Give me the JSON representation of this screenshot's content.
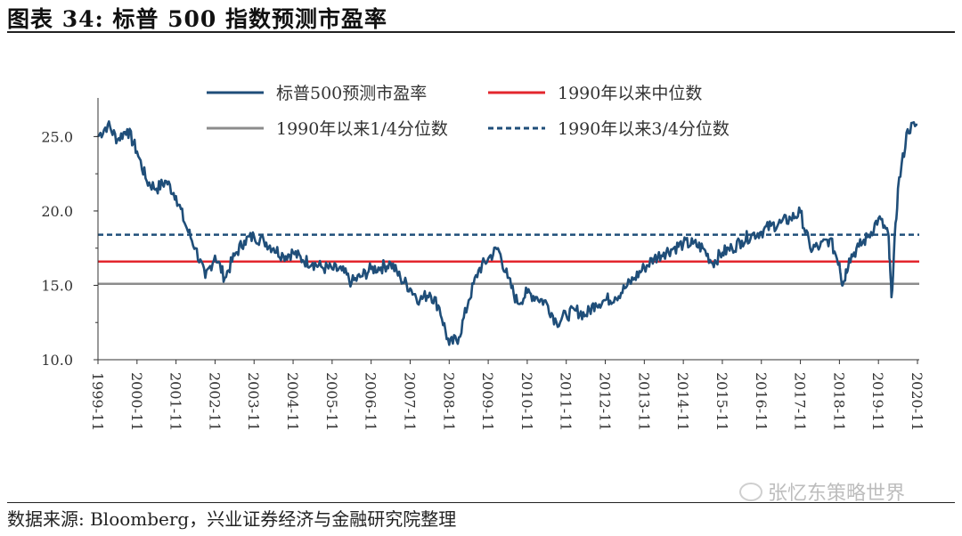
{
  "header": {
    "title": "图表 34:  标普 500 指数预测市盈率"
  },
  "footer": {
    "source": "数据来源: Bloomberg，兴业证券经济与金融研究院整理",
    "watermark": "张忆东策略世界"
  },
  "chart_data": {
    "type": "line",
    "title": "图表 34:  标普 500 指数预测市盈率",
    "xlabel": "",
    "ylabel": "",
    "ylim": [
      10,
      27
    ],
    "yticks": [
      "10.0",
      "15.0",
      "20.0",
      "25.0"
    ],
    "xticks": [
      "1999-11",
      "2000-11",
      "2001-11",
      "2002-11",
      "2003-11",
      "2004-11",
      "2005-11",
      "2006-11",
      "2007-11",
      "2008-11",
      "2009-11",
      "2010-11",
      "2011-11",
      "2012-11",
      "2013-11",
      "2014-11",
      "2015-11",
      "2016-11",
      "2017-11",
      "2018-11",
      "2019-11",
      "2020-11"
    ],
    "legend_position": "top-center",
    "series": [
      {
        "name": "标普500预测市盈率",
        "color": "#1f4e79",
        "style": "solid",
        "x": [
          "1999-11",
          "2000-02",
          "2000-05",
          "2000-08",
          "2000-11",
          "2001-02",
          "2001-05",
          "2001-08",
          "2001-11",
          "2002-02",
          "2002-05",
          "2002-08",
          "2002-11",
          "2003-02",
          "2003-05",
          "2003-08",
          "2003-11",
          "2004-02",
          "2004-05",
          "2004-08",
          "2004-11",
          "2005-02",
          "2005-05",
          "2005-08",
          "2005-11",
          "2006-02",
          "2006-05",
          "2006-08",
          "2006-11",
          "2007-02",
          "2007-05",
          "2007-08",
          "2007-11",
          "2008-02",
          "2008-05",
          "2008-08",
          "2008-11",
          "2009-02",
          "2009-05",
          "2009-08",
          "2009-11",
          "2010-02",
          "2010-05",
          "2010-08",
          "2010-11",
          "2011-02",
          "2011-05",
          "2011-08",
          "2011-11",
          "2012-02",
          "2012-05",
          "2012-08",
          "2012-11",
          "2013-02",
          "2013-05",
          "2013-08",
          "2013-11",
          "2014-02",
          "2014-05",
          "2014-08",
          "2014-11",
          "2015-02",
          "2015-05",
          "2015-08",
          "2015-11",
          "2016-02",
          "2016-05",
          "2016-08",
          "2016-11",
          "2017-02",
          "2017-05",
          "2017-08",
          "2017-11",
          "2018-02",
          "2018-05",
          "2018-08",
          "2018-11",
          "2018-12",
          "2019-02",
          "2019-05",
          "2019-08",
          "2019-11",
          "2020-02",
          "2020-03",
          "2020-05",
          "2020-08",
          "2020-11"
        ],
        "values": [
          25.0,
          25.8,
          24.8,
          25.5,
          24.0,
          22.0,
          21.5,
          22.0,
          21.0,
          19.0,
          17.5,
          15.5,
          17.0,
          15.5,
          17.0,
          18.0,
          18.3,
          18.0,
          17.5,
          17.0,
          17.2,
          16.7,
          16.5,
          16.2,
          16.1,
          16.0,
          15.2,
          15.6,
          16.1,
          16.2,
          16.5,
          15.5,
          14.8,
          14.0,
          14.5,
          13.5,
          11.0,
          11.5,
          14.0,
          16.0,
          16.8,
          17.5,
          15.5,
          13.8,
          14.5,
          14.2,
          13.8,
          12.5,
          13.0,
          13.3,
          13.0,
          13.8,
          14.0,
          14.2,
          14.8,
          15.5,
          16.2,
          16.8,
          17.2,
          17.5,
          17.8,
          17.8,
          17.5,
          16.5,
          17.2,
          17.5,
          18.0,
          18.4,
          18.6,
          19.0,
          19.2,
          19.5,
          19.9,
          17.5,
          17.6,
          18.1,
          16.5,
          15.0,
          16.8,
          17.6,
          18.3,
          19.5,
          18.5,
          14.2,
          21.5,
          25.5,
          25.8
        ]
      },
      {
        "name": "1990年以来中位数",
        "color": "#e3262d",
        "style": "solid",
        "value": 16.6
      },
      {
        "name": "1990年以来1/4分位数",
        "color": "#8c8c8c",
        "style": "solid",
        "value": 15.1
      },
      {
        "name": "1990年以来3/4分位数",
        "color": "#1f4e79",
        "style": "dashed",
        "value": 18.4
      }
    ]
  }
}
